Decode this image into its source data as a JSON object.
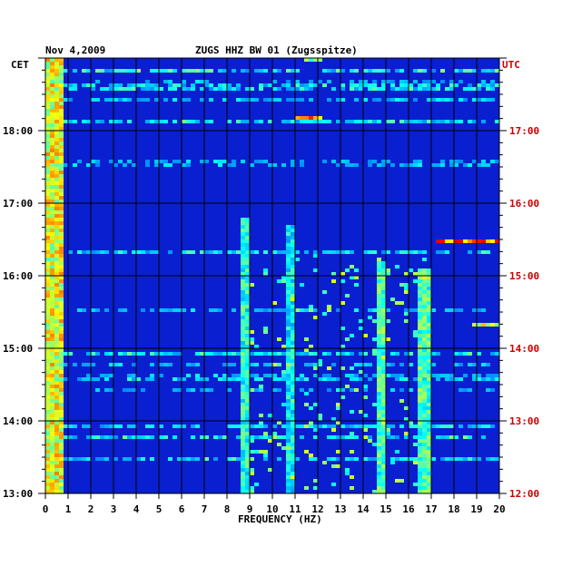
{
  "chart_data": {
    "type": "heatmap",
    "date_label": "Nov 4,2009",
    "title": "ZUGS HHZ BW 01 (Zugsspitze)",
    "left_axis_label": "CET",
    "right_axis_label": "UTC",
    "xlabel": "FREQUENCY (HZ)",
    "xlim": [
      0,
      20
    ],
    "x_ticks": [
      "0",
      "1",
      "2",
      "3",
      "4",
      "5",
      "6",
      "7",
      "8",
      "9",
      "10",
      "11",
      "12",
      "13",
      "14",
      "15",
      "16",
      "17",
      "18",
      "19",
      "20"
    ],
    "ylim_cet_hours": [
      13,
      19
    ],
    "left_ticks": [
      {
        "label": "13:00",
        "hour": 13
      },
      {
        "label": "14:00",
        "hour": 14
      },
      {
        "label": "15:00",
        "hour": 15
      },
      {
        "label": "16:00",
        "hour": 16
      },
      {
        "label": "17:00",
        "hour": 17
      },
      {
        "label": "18:00",
        "hour": 18
      }
    ],
    "right_ticks": [
      {
        "label": "12:00",
        "hour": 13
      },
      {
        "label": "13:00",
        "hour": 14
      },
      {
        "label": "14:00",
        "hour": 15
      },
      {
        "label": "15:00",
        "hour": 16
      },
      {
        "label": "16:00",
        "hour": 17
      },
      {
        "label": "17:00",
        "hour": 18
      }
    ],
    "grid": true,
    "colors": {
      "background": "#0a1fd0",
      "grid": "#000000",
      "axis_text": "#000000",
      "utc_text": "#cc0000",
      "low": "#0018c8",
      "high": "#ff2000"
    },
    "features": [
      {
        "desc": "persistent low-frequency energy band",
        "x_range": [
          0.1,
          0.8
        ],
        "y_range": [
          13,
          19
        ],
        "intensity": 0.75
      },
      {
        "desc": "vertical line near 8.8 Hz",
        "x_range": [
          8.7,
          8.95
        ],
        "y_range": [
          13,
          16.8
        ],
        "intensity": 0.5
      },
      {
        "desc": "band near 10.8 Hz",
        "x_range": [
          10.6,
          11.0
        ],
        "y_range": [
          13,
          16.7
        ],
        "intensity": 0.45
      },
      {
        "desc": "band near 14.8 Hz",
        "x_range": [
          14.6,
          15.0
        ],
        "y_range": [
          13,
          16.2
        ],
        "intensity": 0.55
      },
      {
        "desc": "band near 16.8 Hz",
        "x_range": [
          16.5,
          17.0
        ],
        "y_range": [
          13,
          16.1
        ],
        "intensity": 0.55
      },
      {
        "desc": "strong burst 17-20 Hz",
        "x_range": [
          17.2,
          20
        ],
        "y_range": [
          16.45,
          16.5
        ],
        "intensity": 0.95
      },
      {
        "desc": "burst 19-20 Hz",
        "x_range": [
          18.8,
          20
        ],
        "y_range": [
          15.3,
          15.36
        ],
        "intensity": 0.8
      },
      {
        "desc": "burst 11-12 Hz",
        "x_range": [
          11.0,
          12.2
        ],
        "y_range": [
          18.16,
          18.2
        ],
        "intensity": 0.85
      },
      {
        "desc": "burst near 11.8 Hz top",
        "x_range": [
          11.5,
          12.1
        ],
        "y_range": [
          18.95,
          19
        ],
        "intensity": 0.6
      }
    ]
  }
}
